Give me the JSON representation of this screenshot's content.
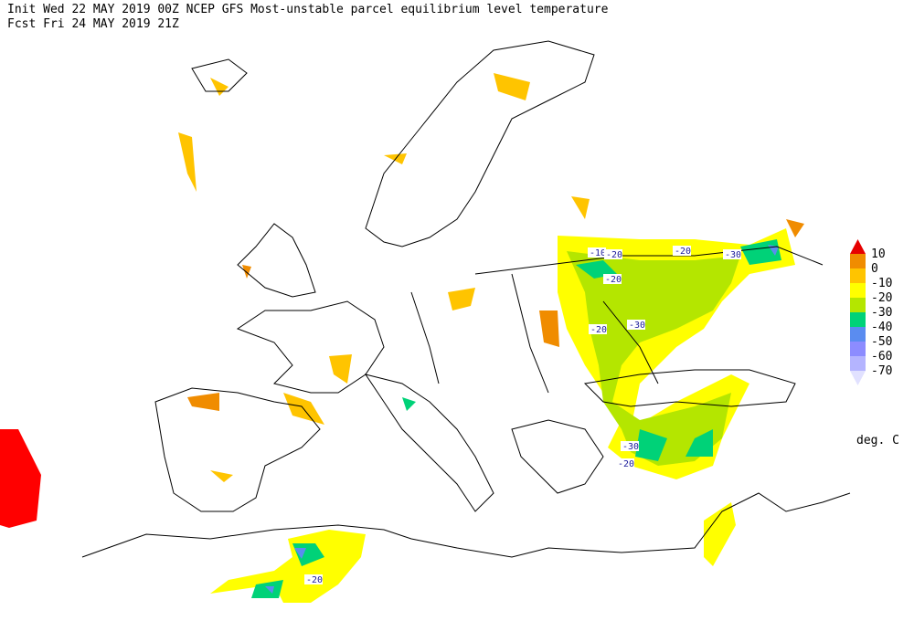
{
  "header": {
    "line1": "Init  Wed 22 MAY 2019 00Z  NCEP GFS Most-unstable parcel equilibrium level temperature",
    "line2": "Fcst Fri 24 MAY 2019 21Z"
  },
  "legend": {
    "colors": [
      "#e60000",
      "#f08c00",
      "#ffc400",
      "#ffff00",
      "#b4e600",
      "#00d278",
      "#5a8cf0",
      "#8c8cff",
      "#b4b4ff",
      "#e1e1ff"
    ],
    "labels": [
      "10",
      "0",
      "-10",
      "-20",
      "-30",
      "-40",
      "-50",
      "-60",
      "-70"
    ],
    "unit": "deg. C"
  },
  "contour_labels": [
    "-10",
    "-20",
    "-20",
    "-30",
    "-20",
    "-20",
    "-30",
    "-30",
    "-20",
    "-20"
  ]
}
